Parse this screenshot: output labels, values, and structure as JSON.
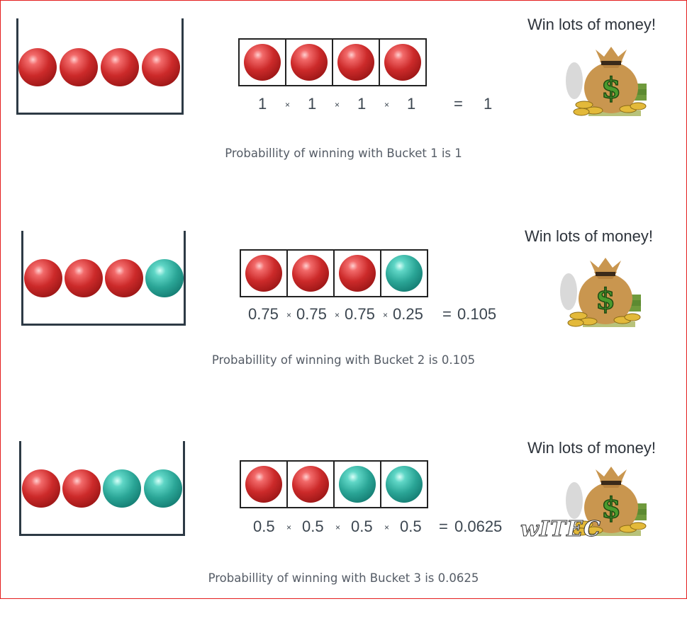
{
  "rows": [
    {
      "bucket_balls": [
        "red",
        "red",
        "red",
        "red"
      ],
      "slot_balls": [
        "red",
        "red",
        "red",
        "red"
      ],
      "factors": [
        "1",
        "1",
        "1",
        "1"
      ],
      "times": "×",
      "equals": "=",
      "result": "1",
      "win_text": "Win lots of money!",
      "caption": "Probabillity of winning with Bucket 1 is 1"
    },
    {
      "bucket_balls": [
        "red",
        "red",
        "red",
        "teal"
      ],
      "slot_balls": [
        "red",
        "red",
        "red",
        "teal"
      ],
      "factors": [
        "0.75",
        "0.75",
        "0.75",
        "0.25"
      ],
      "times": "×",
      "equals": "=",
      "result": "0.105",
      "win_text": "Win lots of money!",
      "caption": "Probabillity of winning with Bucket 2 is 0.105"
    },
    {
      "bucket_balls": [
        "red",
        "red",
        "teal",
        "teal"
      ],
      "slot_balls": [
        "red",
        "red",
        "teal",
        "teal"
      ],
      "factors": [
        "0.5",
        "0.5",
        "0.5",
        "0.5"
      ],
      "times": "×",
      "equals": "=",
      "result": "0.0625",
      "win_text": "Win lots of money!",
      "caption": "Probabillity of winning with Bucket 3 is 0.0625"
    }
  ],
  "watermark": "wITEC",
  "colors": {
    "frame": "#e41e1e",
    "red_ball": "#cc2a2a",
    "teal_ball": "#2aa596",
    "bag": "#c9964f",
    "dollar": "#4a9b2e"
  }
}
